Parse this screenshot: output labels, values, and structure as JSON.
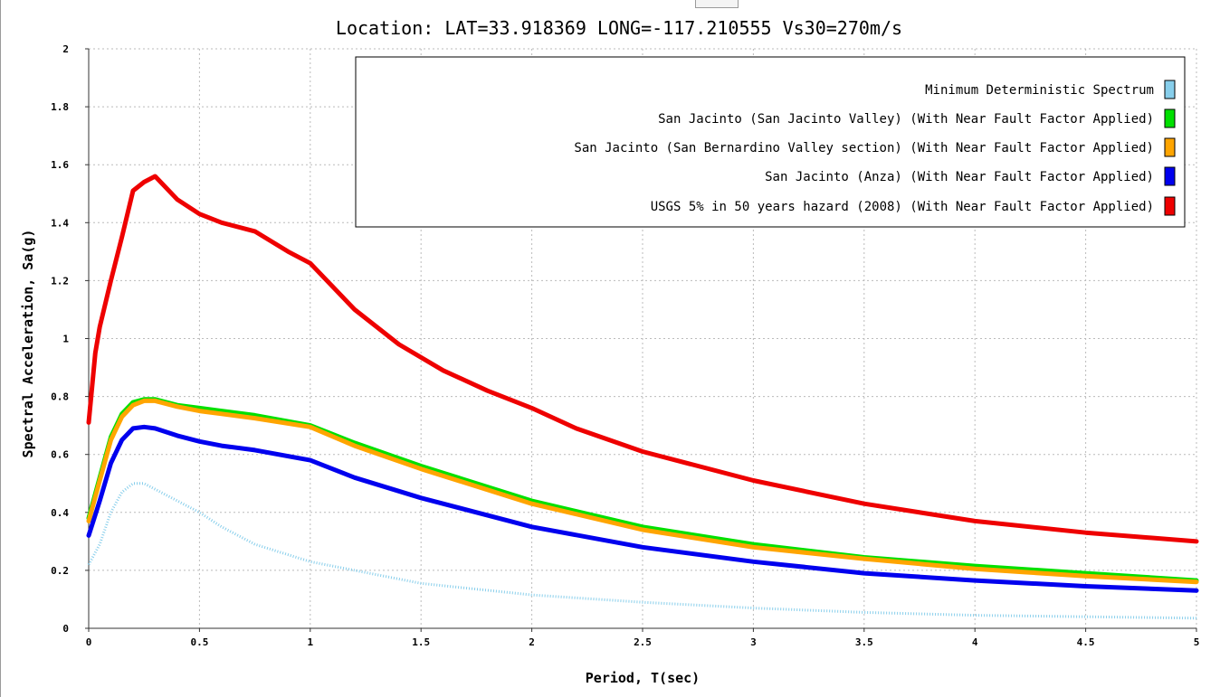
{
  "chart_data": {
    "type": "line",
    "title": "Location: LAT=33.918369 LONG=-117.210555 Vs30=270m/s",
    "xlabel": "Period, T(sec)",
    "ylabel": "Spectral Acceleration, Sa(g)",
    "xlim": [
      0,
      5
    ],
    "ylim": [
      0,
      2
    ],
    "xticks": [
      "0",
      "0.5",
      "1",
      "1.5",
      "2",
      "2.5",
      "3",
      "3.5",
      "4",
      "4.5",
      "5"
    ],
    "yticks": [
      "0",
      "0.2",
      "0.4",
      "0.6",
      "0.8",
      "1",
      "1.2",
      "1.4",
      "1.6",
      "1.8",
      "2"
    ],
    "grid": true,
    "legend_position": "top-right",
    "series": [
      {
        "name": "Minimum Deterministic Spectrum",
        "color": "#87ceeb",
        "dotted": true,
        "x": [
          0,
          0.05,
          0.1,
          0.15,
          0.2,
          0.25,
          0.3,
          0.4,
          0.5,
          0.6,
          0.75,
          1.0,
          1.5,
          2.0,
          2.5,
          3.0,
          3.5,
          4.0,
          4.5,
          5.0
        ],
        "y": [
          0.22,
          0.29,
          0.4,
          0.47,
          0.5,
          0.5,
          0.48,
          0.44,
          0.4,
          0.35,
          0.29,
          0.23,
          0.155,
          0.115,
          0.09,
          0.07,
          0.055,
          0.045,
          0.04,
          0.035
        ]
      },
      {
        "name": "San Jacinto (San Jacinto Valley) (With Near Fault Factor Applied)",
        "color": "#00e000",
        "x": [
          0,
          0.05,
          0.1,
          0.15,
          0.2,
          0.25,
          0.3,
          0.4,
          0.5,
          0.6,
          0.75,
          1.0,
          1.2,
          1.5,
          2.0,
          2.5,
          3.0,
          3.5,
          4.0,
          4.5,
          5.0
        ],
        "y": [
          0.38,
          0.52,
          0.66,
          0.74,
          0.78,
          0.79,
          0.79,
          0.77,
          0.76,
          0.75,
          0.735,
          0.7,
          0.64,
          0.56,
          0.44,
          0.35,
          0.29,
          0.245,
          0.215,
          0.19,
          0.165
        ]
      },
      {
        "name": "San Jacinto (San Bernardino Valley section) (With Near Fault Factor Applied)",
        "color": "#ffa500",
        "x": [
          0,
          0.05,
          0.1,
          0.15,
          0.2,
          0.25,
          0.3,
          0.4,
          0.5,
          0.6,
          0.75,
          1.0,
          1.2,
          1.5,
          2.0,
          2.5,
          3.0,
          3.5,
          4.0,
          4.5,
          5.0
        ],
        "y": [
          0.37,
          0.51,
          0.65,
          0.73,
          0.77,
          0.785,
          0.785,
          0.765,
          0.75,
          0.74,
          0.725,
          0.695,
          0.63,
          0.55,
          0.43,
          0.34,
          0.28,
          0.24,
          0.205,
          0.18,
          0.16
        ]
      },
      {
        "name": "San Jacinto (Anza) (With Near Fault Factor Applied)",
        "color": "#0000ee",
        "x": [
          0,
          0.05,
          0.1,
          0.15,
          0.2,
          0.25,
          0.3,
          0.4,
          0.5,
          0.6,
          0.75,
          1.0,
          1.2,
          1.5,
          2.0,
          2.5,
          3.0,
          3.5,
          4.0,
          4.5,
          5.0
        ],
        "y": [
          0.32,
          0.44,
          0.57,
          0.65,
          0.69,
          0.695,
          0.69,
          0.665,
          0.645,
          0.63,
          0.615,
          0.58,
          0.52,
          0.45,
          0.35,
          0.28,
          0.23,
          0.19,
          0.165,
          0.145,
          0.13
        ]
      },
      {
        "name": "USGS 5% in 50 years hazard (2008) (With Near Fault Factor Applied)",
        "color": "#ee0000",
        "x": [
          0,
          0.03,
          0.05,
          0.1,
          0.15,
          0.2,
          0.25,
          0.3,
          0.4,
          0.5,
          0.6,
          0.75,
          0.9,
          1.0,
          1.2,
          1.4,
          1.6,
          1.8,
          2.0,
          2.2,
          2.5,
          3.0,
          3.5,
          4.0,
          4.5,
          5.0
        ],
        "y": [
          0.71,
          0.95,
          1.04,
          1.2,
          1.35,
          1.51,
          1.54,
          1.56,
          1.48,
          1.43,
          1.4,
          1.37,
          1.3,
          1.26,
          1.1,
          0.98,
          0.89,
          0.82,
          0.76,
          0.69,
          0.61,
          0.51,
          0.43,
          0.37,
          0.33,
          0.3
        ]
      }
    ]
  }
}
